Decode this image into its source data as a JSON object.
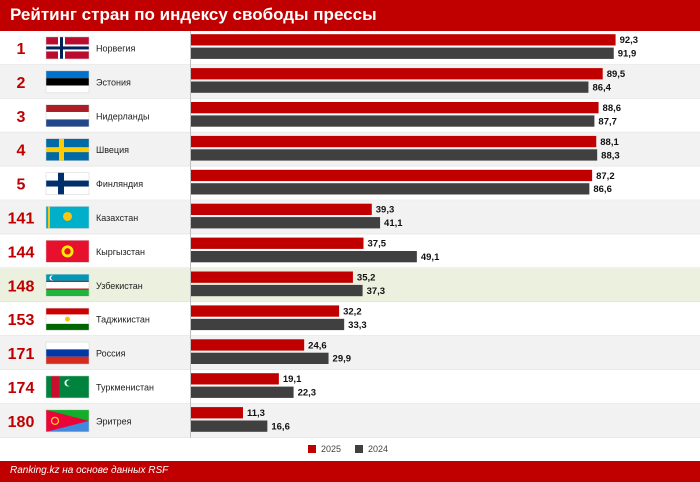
{
  "header": {
    "title": "Рейтинг стран по индексу свободы прессы"
  },
  "footer": {
    "source": "Ranking.kz на основе данных RSF"
  },
  "legend": {
    "items": [
      "2025",
      "2024"
    ]
  },
  "colors": {
    "series_2025": "#c00000",
    "series_2024": "#404040",
    "rank": "#c00000",
    "highlight_row": "#ebf1de",
    "row_odd": "#ffffff",
    "row_even": "#f2f2f2"
  },
  "chart_data": {
    "type": "bar",
    "orientation": "horizontal",
    "categories": [
      "Норвегия",
      "Эстония",
      "Нидерланды",
      "Швеция",
      "Финляндия",
      "Казахстан",
      "Кыргызстан",
      "Узбекистан",
      "Таджикистан",
      "Россия",
      "Туркменистан",
      "Эритрея"
    ],
    "ranks": [
      "1",
      "2",
      "3",
      "4",
      "5",
      "141",
      "144",
      "148",
      "153",
      "171",
      "174",
      "180"
    ],
    "flags": [
      "norway-flag-icon",
      "estonia-flag-icon",
      "netherlands-flag-icon",
      "sweden-flag-icon",
      "finland-flag-icon",
      "kazakhstan-flag-icon",
      "kyrgyzstan-flag-icon",
      "uzbekistan-flag-icon",
      "tajikistan-flag-icon",
      "russia-flag-icon",
      "turkmenistan-flag-icon",
      "eritrea-flag-icon"
    ],
    "highlighted_category": "Узбекистан",
    "series": [
      {
        "name": "2025",
        "values": [
          92.3,
          89.5,
          88.6,
          88.1,
          87.2,
          39.3,
          37.5,
          35.2,
          32.2,
          24.6,
          19.1,
          11.3
        ],
        "labels": [
          "92,3",
          "89,5",
          "88,6",
          "88,1",
          "87,2",
          "39,3",
          "37,5",
          "35,2",
          "32,2",
          "24,6",
          "19,1",
          "11,3"
        ]
      },
      {
        "name": "2024",
        "values": [
          91.9,
          86.4,
          87.7,
          88.3,
          86.6,
          41.1,
          49.1,
          37.3,
          33.3,
          29.9,
          22.3,
          16.6
        ],
        "labels": [
          "91,9",
          "86,4",
          "87,7",
          "88,3",
          "86,6",
          "41,1",
          "49,1",
          "37,3",
          "33,3",
          "29,9",
          "22,3",
          "16,6"
        ]
      }
    ],
    "xlim": [
      0,
      100
    ],
    "grid": false,
    "legend_position": "bottom-center"
  }
}
